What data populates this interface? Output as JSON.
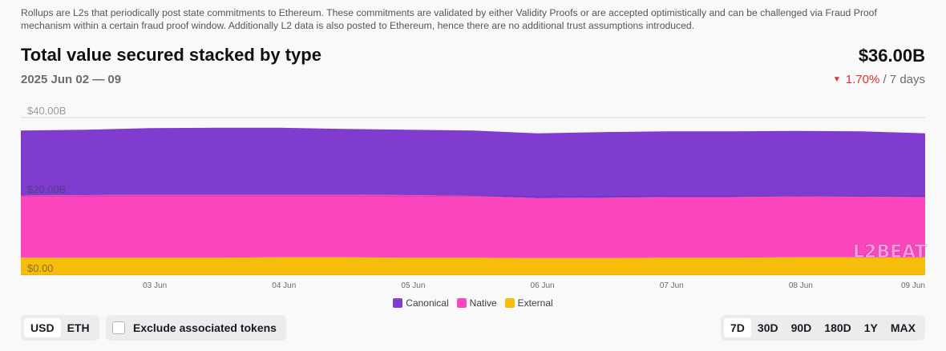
{
  "description": "Rollups are L2s that periodically post state commitments to Ethereum. These commitments are validated by either Validity Proofs or are accepted optimistically and can be challenged via Fraud Proof mechanism within a certain fraud proof window. Additionally L2 data is also posted to Ethereum, hence there are no additional trust assumptions introduced.",
  "header": {
    "title": "Total value secured stacked by type",
    "date_range": "2025 Jun 02 — 09",
    "total": "$36.00B",
    "change_percent": "1.70%",
    "change_period": "/ 7 days"
  },
  "watermark": "L2BEAT",
  "chart_data": {
    "type": "area",
    "stacked": true,
    "title": "Total value secured stacked by type",
    "y_unit": "USD billions",
    "ylim": [
      0,
      40
    ],
    "y_ticks": [
      {
        "value": 0,
        "label": "$0.00"
      },
      {
        "value": 20,
        "label": "$20.00B"
      },
      {
        "value": 40,
        "label": "$40.00B"
      }
    ],
    "x_ticks": [
      "03 Jun",
      "04 Jun",
      "05 Jun",
      "06 Jun",
      "07 Jun",
      "08 Jun",
      "09 Jun"
    ],
    "x": [
      "02 Jun 00:00",
      "02 Jun 12:00",
      "03 Jun 00:00",
      "03 Jun 12:00",
      "04 Jun 00:00",
      "04 Jun 12:00",
      "05 Jun 00:00",
      "05 Jun 12:00",
      "06 Jun 00:00",
      "06 Jun 12:00",
      "07 Jun 00:00",
      "07 Jun 12:00",
      "08 Jun 00:00",
      "08 Jun 12:00",
      "09 Jun 00:00"
    ],
    "series": [
      {
        "name": "External",
        "color": "#f6bd0a",
        "values": [
          4.4,
          4.4,
          4.4,
          4.4,
          4.5,
          4.5,
          4.4,
          4.4,
          4.3,
          4.3,
          4.4,
          4.4,
          4.5,
          4.5,
          4.5
        ]
      },
      {
        "name": "Native",
        "color": "#fc46be",
        "values": [
          15.8,
          15.9,
          16.0,
          16.0,
          15.9,
          15.9,
          15.9,
          15.7,
          15.2,
          15.3,
          15.4,
          15.4,
          15.5,
          15.4,
          15.3
        ]
      },
      {
        "name": "Canonical",
        "color": "#7f3ccf",
        "values": [
          16.5,
          16.6,
          16.9,
          17.0,
          17.0,
          16.7,
          16.6,
          16.6,
          16.5,
          16.7,
          16.7,
          16.7,
          16.6,
          16.6,
          16.2
        ]
      }
    ],
    "legend": [
      "Canonical",
      "Native",
      "External"
    ],
    "legend_position": "bottom-center",
    "grid": true
  },
  "controls": {
    "unit_options": [
      "USD",
      "ETH"
    ],
    "unit_selected": "USD",
    "exclude_label": "Exclude associated tokens",
    "exclude_checked": false,
    "time_options": [
      "7D",
      "30D",
      "90D",
      "180D",
      "1Y",
      "MAX"
    ],
    "time_selected": "7D"
  }
}
